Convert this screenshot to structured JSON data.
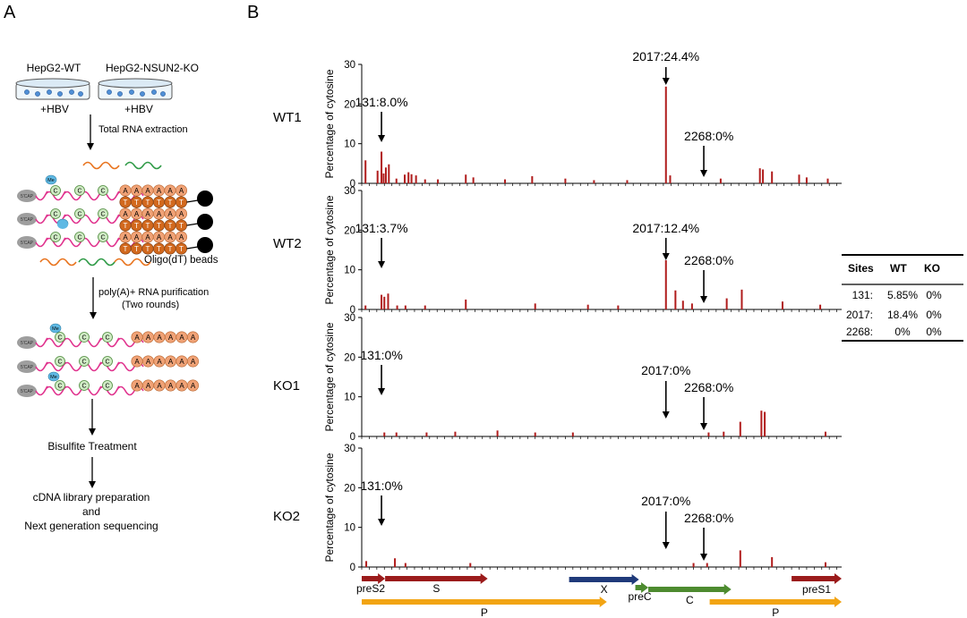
{
  "panel_labels": {
    "a": "A",
    "b": "B"
  },
  "colors": {
    "bar": "#b01c1c",
    "axis": "#000000",
    "rna": "#e0338e",
    "cap": "#9e9e9e",
    "c_fill": "#cfeac4",
    "me_fill": "#5fb9e4",
    "a_fill": "#f0a276",
    "t_fill": "#d2691e",
    "orange_wave": "#e8731d",
    "green_wave": "#2e9a46",
    "preS2": "#9b1b1b",
    "S": "#9b1b1b",
    "X": "#1f3a7a",
    "preC": "#4d8b2f",
    "C": "#4d8b2f",
    "preS1": "#9b1b1b",
    "P": "#f2a413"
  },
  "workflow": {
    "cell_wt": "HepG2-WT",
    "cell_ko": "HepG2-NSUN2-KO",
    "hbv_wt": "+HBV",
    "hbv_ko": "+HBV",
    "step1": "Total RNA extraction",
    "cap_label": "5'CAP",
    "me_label": "Me",
    "c_label": "C",
    "a_label": "A",
    "t_label": "T",
    "beads_label": "Oligo(dT)  beads",
    "step2_line1": "poly(A)+ RNA purification",
    "step2_line2": "(Two rounds)",
    "step3": "Bisulfite Treatment",
    "step4_line1": "cDNA library preparation",
    "step4_line2": "and",
    "step4_line3": "Next generation sequencing"
  },
  "table": {
    "headers": [
      "Sites",
      "WT",
      "KO"
    ],
    "rows": [
      [
        "131:",
        "5.85%",
        "0%"
      ],
      [
        "2017:",
        "18.4%",
        "0%"
      ],
      [
        "2268:",
        "0%",
        "0%"
      ]
    ]
  },
  "genes": [
    {
      "name": "preS2",
      "start": 0,
      "end": 155
    },
    {
      "name": "S",
      "start": 155,
      "end": 835
    },
    {
      "name": "X",
      "start": 1375,
      "end": 1838
    },
    {
      "name": "preC",
      "start": 1814,
      "end": 1900
    },
    {
      "name": "C",
      "start": 1900,
      "end": 2450
    },
    {
      "name": "preS1",
      "start": 2850,
      "end": 3182
    },
    {
      "name": "P",
      "start": 0,
      "end": 1625
    },
    {
      "name": "P",
      "start": 2307,
      "end": 3182
    }
  ],
  "chart_data": [
    {
      "type": "bar",
      "title": "WT1",
      "ylabel": "Percentage of cytosine",
      "ylim": [
        0,
        30
      ],
      "yticks": [
        0,
        10,
        20,
        30
      ],
      "xlim": [
        0,
        3182
      ],
      "annotations": [
        {
          "label": "131:8.0%",
          "x": 131
        },
        {
          "label": "2017:24.4%",
          "x": 2017
        },
        {
          "label": "2268:0%",
          "x": 2268
        }
      ],
      "x": [
        25,
        105,
        131,
        145,
        160,
        180,
        230,
        285,
        310,
        330,
        360,
        420,
        505,
        690,
        740,
        950,
        1130,
        1350,
        1540,
        1760,
        2017,
        2045,
        2380,
        2640,
        2660,
        2720,
        2900,
        2950,
        3090
      ],
      "values": [
        5.8,
        3.2,
        8.0,
        2.5,
        4.0,
        4.8,
        1.2,
        2.2,
        2.8,
        2.3,
        2.0,
        1.0,
        1.0,
        2.2,
        1.5,
        1.0,
        1.8,
        1.2,
        0.8,
        0.8,
        24.4,
        2.0,
        1.2,
        3.8,
        3.5,
        3.0,
        2.2,
        1.5,
        1.2
      ]
    },
    {
      "type": "bar",
      "title": "WT2",
      "ylabel": "Percentage of cytosine",
      "ylim": [
        0,
        30
      ],
      "yticks": [
        0,
        10,
        20,
        30
      ],
      "xlim": [
        0,
        3182
      ],
      "annotations": [
        {
          "label": "131:3.7%",
          "x": 131
        },
        {
          "label": "2017:12.4%",
          "x": 2017
        },
        {
          "label": "2268:0%",
          "x": 2268
        }
      ],
      "x": [
        25,
        131,
        150,
        175,
        235,
        290,
        420,
        690,
        1150,
        1500,
        1700,
        2017,
        2080,
        2130,
        2190,
        2420,
        2520,
        2790,
        3040
      ],
      "values": [
        1.0,
        3.7,
        3.2,
        4.0,
        1.0,
        1.0,
        1.0,
        2.5,
        1.5,
        1.2,
        1.0,
        12.4,
        4.8,
        2.2,
        1.5,
        2.8,
        5.0,
        2.0,
        1.2
      ]
    },
    {
      "type": "bar",
      "title": "KO1",
      "ylabel": "Percentage of cytosine",
      "ylim": [
        0,
        30
      ],
      "yticks": [
        0,
        10,
        20,
        30
      ],
      "xlim": [
        0,
        3182
      ],
      "annotations": [
        {
          "label": "131:0%",
          "x": 131
        },
        {
          "label": "2017:0%",
          "x": 2017
        },
        {
          "label": "2268:0%",
          "x": 2268
        }
      ],
      "x": [
        150,
        230,
        430,
        620,
        900,
        1150,
        1400,
        2300,
        2400,
        2510,
        2650,
        2672,
        3075
      ],
      "values": [
        1.0,
        1.0,
        1.0,
        1.2,
        1.5,
        1.0,
        1.0,
        1.0,
        1.2,
        3.7,
        6.5,
        6.2,
        1.2
      ]
    },
    {
      "type": "bar",
      "title": "KO2",
      "ylabel": "Percentage of cytosine",
      "ylim": [
        0,
        30
      ],
      "yticks": [
        0,
        10,
        20,
        30
      ],
      "xlim": [
        0,
        3182
      ],
      "annotations": [
        {
          "label": "131:0%",
          "x": 131
        },
        {
          "label": "2017:0%",
          "x": 2017
        },
        {
          "label": "2268:0%",
          "x": 2268
        }
      ],
      "x": [
        30,
        220,
        290,
        720,
        2200,
        2290,
        2510,
        2720,
        3075
      ],
      "values": [
        1.5,
        2.2,
        1.0,
        1.0,
        1.0,
        1.0,
        4.2,
        2.5,
        1.2
      ]
    }
  ]
}
